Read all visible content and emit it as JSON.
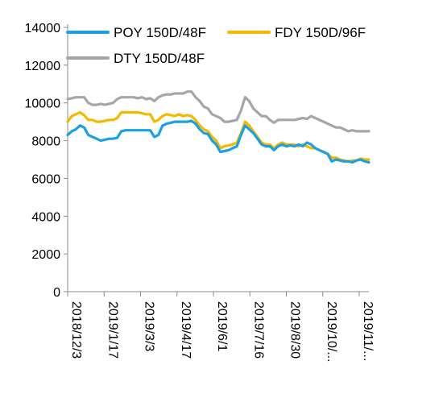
{
  "chart_data": {
    "type": "line",
    "title": "",
    "xlabel": "",
    "ylabel": "",
    "ylim": [
      0,
      14000
    ],
    "yticks": [
      0,
      2000,
      4000,
      6000,
      8000,
      10000,
      12000,
      14000
    ],
    "xtick_labels": [
      "2018/12/3",
      "2019/1/17",
      "2019/3/3",
      "2019/4/17",
      "2019/6/1",
      "2019/7/16",
      "2019/8/30",
      "2019/10/...",
      "2019/11/..."
    ],
    "legend_position": "top",
    "grid": false,
    "series": [
      {
        "name": "POY 150D/48F",
        "color": "#1ba1e2",
        "points": [
          [
            0,
            8300
          ],
          [
            2,
            8500
          ],
          [
            4,
            8600
          ],
          [
            6,
            8800
          ],
          [
            8,
            8700
          ],
          [
            10,
            8300
          ],
          [
            12,
            8200
          ],
          [
            14,
            8100
          ],
          [
            16,
            8000
          ],
          [
            18,
            8050
          ],
          [
            20,
            8100
          ],
          [
            22,
            8100
          ],
          [
            24,
            8150
          ],
          [
            26,
            8500
          ],
          [
            28,
            8550
          ],
          [
            30,
            8550
          ],
          [
            32,
            8550
          ],
          [
            34,
            8550
          ],
          [
            36,
            8550
          ],
          [
            38,
            8550
          ],
          [
            40,
            8550
          ],
          [
            42,
            8200
          ],
          [
            44,
            8300
          ],
          [
            46,
            8800
          ],
          [
            48,
            8900
          ],
          [
            50,
            8950
          ],
          [
            52,
            9000
          ],
          [
            54,
            9000
          ],
          [
            56,
            9000
          ],
          [
            58,
            9000
          ],
          [
            60,
            9050
          ],
          [
            62,
            8900
          ],
          [
            64,
            8600
          ],
          [
            66,
            8400
          ],
          [
            68,
            8350
          ],
          [
            70,
            8000
          ],
          [
            72,
            7800
          ],
          [
            74,
            7400
          ],
          [
            76,
            7450
          ],
          [
            78,
            7500
          ],
          [
            80,
            7600
          ],
          [
            82,
            7700
          ],
          [
            84,
            8300
          ],
          [
            86,
            8800
          ],
          [
            88,
            8600
          ],
          [
            90,
            8400
          ],
          [
            92,
            8100
          ],
          [
            94,
            7800
          ],
          [
            96,
            7700
          ],
          [
            98,
            7700
          ],
          [
            100,
            7500
          ],
          [
            102,
            7700
          ],
          [
            104,
            7800
          ],
          [
            106,
            7700
          ],
          [
            108,
            7750
          ],
          [
            110,
            7700
          ],
          [
            112,
            7800
          ],
          [
            114,
            7700
          ],
          [
            116,
            7900
          ],
          [
            118,
            7800
          ],
          [
            120,
            7600
          ],
          [
            122,
            7500
          ],
          [
            124,
            7400
          ],
          [
            126,
            7300
          ],
          [
            128,
            6900
          ],
          [
            130,
            7000
          ],
          [
            132,
            6950
          ],
          [
            134,
            6900
          ],
          [
            136,
            6900
          ],
          [
            138,
            6850
          ],
          [
            140,
            6950
          ],
          [
            142,
            7000
          ],
          [
            144,
            6900
          ],
          [
            146,
            6850
          ]
        ]
      },
      {
        "name": "FDY 150D/96F",
        "color": "#f5b800",
        "points": [
          [
            0,
            9000
          ],
          [
            2,
            9300
          ],
          [
            4,
            9400
          ],
          [
            6,
            9500
          ],
          [
            8,
            9350
          ],
          [
            10,
            9100
          ],
          [
            12,
            9100
          ],
          [
            14,
            9000
          ],
          [
            16,
            9000
          ],
          [
            18,
            9050
          ],
          [
            20,
            9100
          ],
          [
            22,
            9100
          ],
          [
            24,
            9200
          ],
          [
            26,
            9500
          ],
          [
            28,
            9500
          ],
          [
            30,
            9500
          ],
          [
            32,
            9500
          ],
          [
            34,
            9500
          ],
          [
            36,
            9450
          ],
          [
            38,
            9400
          ],
          [
            40,
            9400
          ],
          [
            42,
            9000
          ],
          [
            44,
            9100
          ],
          [
            46,
            9300
          ],
          [
            48,
            9400
          ],
          [
            50,
            9350
          ],
          [
            52,
            9300
          ],
          [
            54,
            9400
          ],
          [
            56,
            9300
          ],
          [
            58,
            9350
          ],
          [
            60,
            9300
          ],
          [
            62,
            9100
          ],
          [
            64,
            8800
          ],
          [
            66,
            8600
          ],
          [
            68,
            8500
          ],
          [
            70,
            8200
          ],
          [
            72,
            8000
          ],
          [
            74,
            7600
          ],
          [
            76,
            7700
          ],
          [
            78,
            7750
          ],
          [
            80,
            7800
          ],
          [
            82,
            7900
          ],
          [
            84,
            8400
          ],
          [
            86,
            9000
          ],
          [
            88,
            8800
          ],
          [
            90,
            8500
          ],
          [
            92,
            8200
          ],
          [
            94,
            7900
          ],
          [
            96,
            7800
          ],
          [
            98,
            7800
          ],
          [
            100,
            7600
          ],
          [
            102,
            7800
          ],
          [
            104,
            7900
          ],
          [
            106,
            7800
          ],
          [
            108,
            7800
          ],
          [
            110,
            7800
          ],
          [
            112,
            7700
          ],
          [
            114,
            7800
          ],
          [
            116,
            7700
          ],
          [
            118,
            7600
          ],
          [
            120,
            7600
          ],
          [
            122,
            7500
          ],
          [
            124,
            7400
          ],
          [
            126,
            7300
          ],
          [
            128,
            7100
          ],
          [
            130,
            7100
          ],
          [
            132,
            7000
          ],
          [
            134,
            6950
          ],
          [
            136,
            6900
          ],
          [
            138,
            6950
          ],
          [
            140,
            6950
          ],
          [
            142,
            7050
          ],
          [
            144,
            7000
          ],
          [
            146,
            7000
          ]
        ]
      },
      {
        "name": "DTY 150D/48F",
        "color": "#a6a6a6",
        "points": [
          [
            0,
            10200
          ],
          [
            2,
            10250
          ],
          [
            4,
            10300
          ],
          [
            6,
            10300
          ],
          [
            8,
            10300
          ],
          [
            10,
            10000
          ],
          [
            12,
            9900
          ],
          [
            14,
            9900
          ],
          [
            16,
            9950
          ],
          [
            18,
            9900
          ],
          [
            20,
            9950
          ],
          [
            22,
            10000
          ],
          [
            24,
            10200
          ],
          [
            26,
            10300
          ],
          [
            28,
            10300
          ],
          [
            30,
            10300
          ],
          [
            32,
            10300
          ],
          [
            34,
            10250
          ],
          [
            36,
            10300
          ],
          [
            38,
            10200
          ],
          [
            40,
            10250
          ],
          [
            42,
            10100
          ],
          [
            44,
            10300
          ],
          [
            46,
            10400
          ],
          [
            48,
            10450
          ],
          [
            50,
            10450
          ],
          [
            52,
            10500
          ],
          [
            54,
            10500
          ],
          [
            56,
            10500
          ],
          [
            58,
            10600
          ],
          [
            60,
            10600
          ],
          [
            62,
            10300
          ],
          [
            64,
            10100
          ],
          [
            66,
            9800
          ],
          [
            68,
            9700
          ],
          [
            70,
            9400
          ],
          [
            72,
            9300
          ],
          [
            74,
            9200
          ],
          [
            76,
            9000
          ],
          [
            78,
            9000
          ],
          [
            80,
            9050
          ],
          [
            82,
            9100
          ],
          [
            84,
            9600
          ],
          [
            86,
            10300
          ],
          [
            88,
            10100
          ],
          [
            90,
            9700
          ],
          [
            92,
            9500
          ],
          [
            94,
            9300
          ],
          [
            96,
            9300
          ],
          [
            98,
            9100
          ],
          [
            100,
            8950
          ],
          [
            102,
            9100
          ],
          [
            104,
            9100
          ],
          [
            106,
            9100
          ],
          [
            108,
            9100
          ],
          [
            110,
            9100
          ],
          [
            112,
            9150
          ],
          [
            114,
            9200
          ],
          [
            116,
            9150
          ],
          [
            118,
            9300
          ],
          [
            120,
            9200
          ],
          [
            122,
            9100
          ],
          [
            124,
            9000
          ],
          [
            126,
            8900
          ],
          [
            128,
            8800
          ],
          [
            130,
            8700
          ],
          [
            132,
            8700
          ],
          [
            134,
            8600
          ],
          [
            136,
            8500
          ],
          [
            138,
            8550
          ],
          [
            140,
            8500
          ],
          [
            142,
            8500
          ],
          [
            144,
            8500
          ],
          [
            146,
            8500
          ]
        ]
      }
    ]
  }
}
